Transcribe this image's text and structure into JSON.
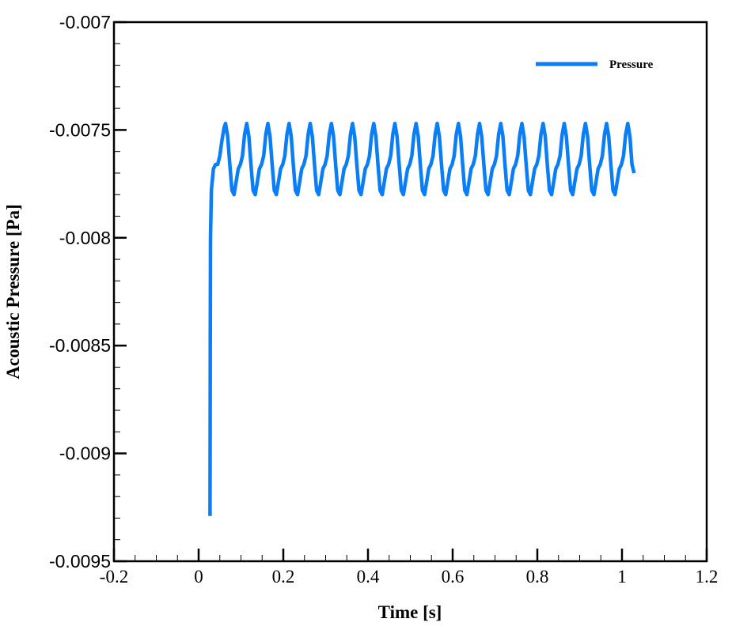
{
  "chart_data": {
    "type": "line",
    "title": "",
    "xlabel": "Time [s]",
    "ylabel": "Acoustic Pressure [Pa]",
    "xlim": [
      -0.2,
      1.2
    ],
    "ylim": [
      -0.0095,
      -0.007
    ],
    "xticks": [
      "-0.2",
      "0",
      "0.2",
      "0.4",
      "0.6",
      "0.8",
      "1",
      "1.2"
    ],
    "xtick_values": [
      -0.2,
      0,
      0.2,
      0.4,
      0.6,
      0.8,
      1,
      1.2
    ],
    "yticks": [
      "-0.007",
      "-0.0075",
      "-0.008",
      "-0.0085",
      "-0.009",
      "-0.0095"
    ],
    "ytick_values": [
      -0.007,
      -0.0075,
      -0.008,
      -0.0085,
      -0.009,
      -0.0095
    ],
    "x_minor_step": 0.05,
    "y_minor_step": 0.0001,
    "grid": false,
    "legend_position": "top-right",
    "series": [
      {
        "name": "Pressure",
        "color": "#0a7ef6",
        "prefix_x": [
          0.027,
          0.0272,
          0.0275,
          0.028,
          0.03,
          0.035,
          0.04,
          0.045,
          0.05,
          0.055,
          0.06
        ],
        "prefix_y": [
          -0.00929,
          -0.0088,
          -0.0085,
          -0.008,
          -0.00778,
          -0.00768,
          -0.00766,
          -0.00766,
          -0.00762,
          -0.00755,
          -0.00749
        ],
        "x_start": 0.0636,
        "x_step": 0.005,
        "y": [
          -0.00747,
          -0.00753,
          -0.00766,
          -0.00778,
          -0.0078,
          -0.00774,
          -0.00768,
          -0.00766,
          -0.00762,
          -0.00752,
          -0.00747,
          -0.00753,
          -0.00766,
          -0.00778,
          -0.0078,
          -0.00774,
          -0.00768,
          -0.00766,
          -0.00762,
          -0.00752,
          -0.00747,
          -0.00753,
          -0.00766,
          -0.00778,
          -0.0078,
          -0.00774,
          -0.00768,
          -0.00766,
          -0.00762,
          -0.00752,
          -0.00747,
          -0.00753,
          -0.00766,
          -0.00778,
          -0.0078,
          -0.00774,
          -0.00768,
          -0.00766,
          -0.00762,
          -0.00752,
          -0.00747,
          -0.00753,
          -0.00766,
          -0.00778,
          -0.0078,
          -0.00774,
          -0.00768,
          -0.00766,
          -0.00762,
          -0.00752,
          -0.00747,
          -0.00753,
          -0.00766,
          -0.00778,
          -0.0078,
          -0.00774,
          -0.00768,
          -0.00766,
          -0.00762,
          -0.00752,
          -0.00747,
          -0.00753,
          -0.00766,
          -0.00778,
          -0.0078,
          -0.00774,
          -0.00768,
          -0.00766,
          -0.00762,
          -0.00752,
          -0.00747,
          -0.00753,
          -0.00766,
          -0.00778,
          -0.0078,
          -0.00774,
          -0.00768,
          -0.00766,
          -0.00762,
          -0.00752,
          -0.00747,
          -0.00753,
          -0.00766,
          -0.00778,
          -0.0078,
          -0.00774,
          -0.00768,
          -0.00766,
          -0.00762,
          -0.00752,
          -0.00747,
          -0.00753,
          -0.00766,
          -0.00778,
          -0.0078,
          -0.00774,
          -0.00768,
          -0.00766,
          -0.00762,
          -0.00752,
          -0.00747,
          -0.00753,
          -0.00766,
          -0.00778,
          -0.0078,
          -0.00774,
          -0.00768,
          -0.00766,
          -0.00762,
          -0.00752,
          -0.00747,
          -0.00753,
          -0.00766,
          -0.00778,
          -0.0078,
          -0.00774,
          -0.00768,
          -0.00766,
          -0.00762,
          -0.00752,
          -0.00747,
          -0.00753,
          -0.00766,
          -0.00778,
          -0.0078,
          -0.00774,
          -0.00768,
          -0.00766,
          -0.00762,
          -0.00752,
          -0.00747,
          -0.00753,
          -0.00766,
          -0.00778,
          -0.0078,
          -0.00774,
          -0.00768,
          -0.00766,
          -0.00762,
          -0.00752,
          -0.00747,
          -0.00753,
          -0.00766,
          -0.00778,
          -0.0078,
          -0.00774,
          -0.00768,
          -0.00766,
          -0.00762,
          -0.00752,
          -0.00747,
          -0.00753,
          -0.00766,
          -0.00778,
          -0.0078,
          -0.00774,
          -0.00768,
          -0.00766,
          -0.00762,
          -0.00752,
          -0.00747,
          -0.00753,
          -0.00766,
          -0.00778,
          -0.0078,
          -0.00774,
          -0.00768,
          -0.00766,
          -0.00762,
          -0.00752,
          -0.00747,
          -0.00753,
          -0.00766,
          -0.00778,
          -0.0078,
          -0.00774,
          -0.00768,
          -0.00766,
          -0.00762,
          -0.00752,
          -0.00747,
          -0.00753,
          -0.00766,
          -0.00778,
          -0.0078,
          -0.00774,
          -0.00768,
          -0.00766,
          -0.00762,
          -0.00752,
          -0.00747,
          -0.00753,
          -0.00766,
          -0.0077
        ]
      }
    ]
  }
}
